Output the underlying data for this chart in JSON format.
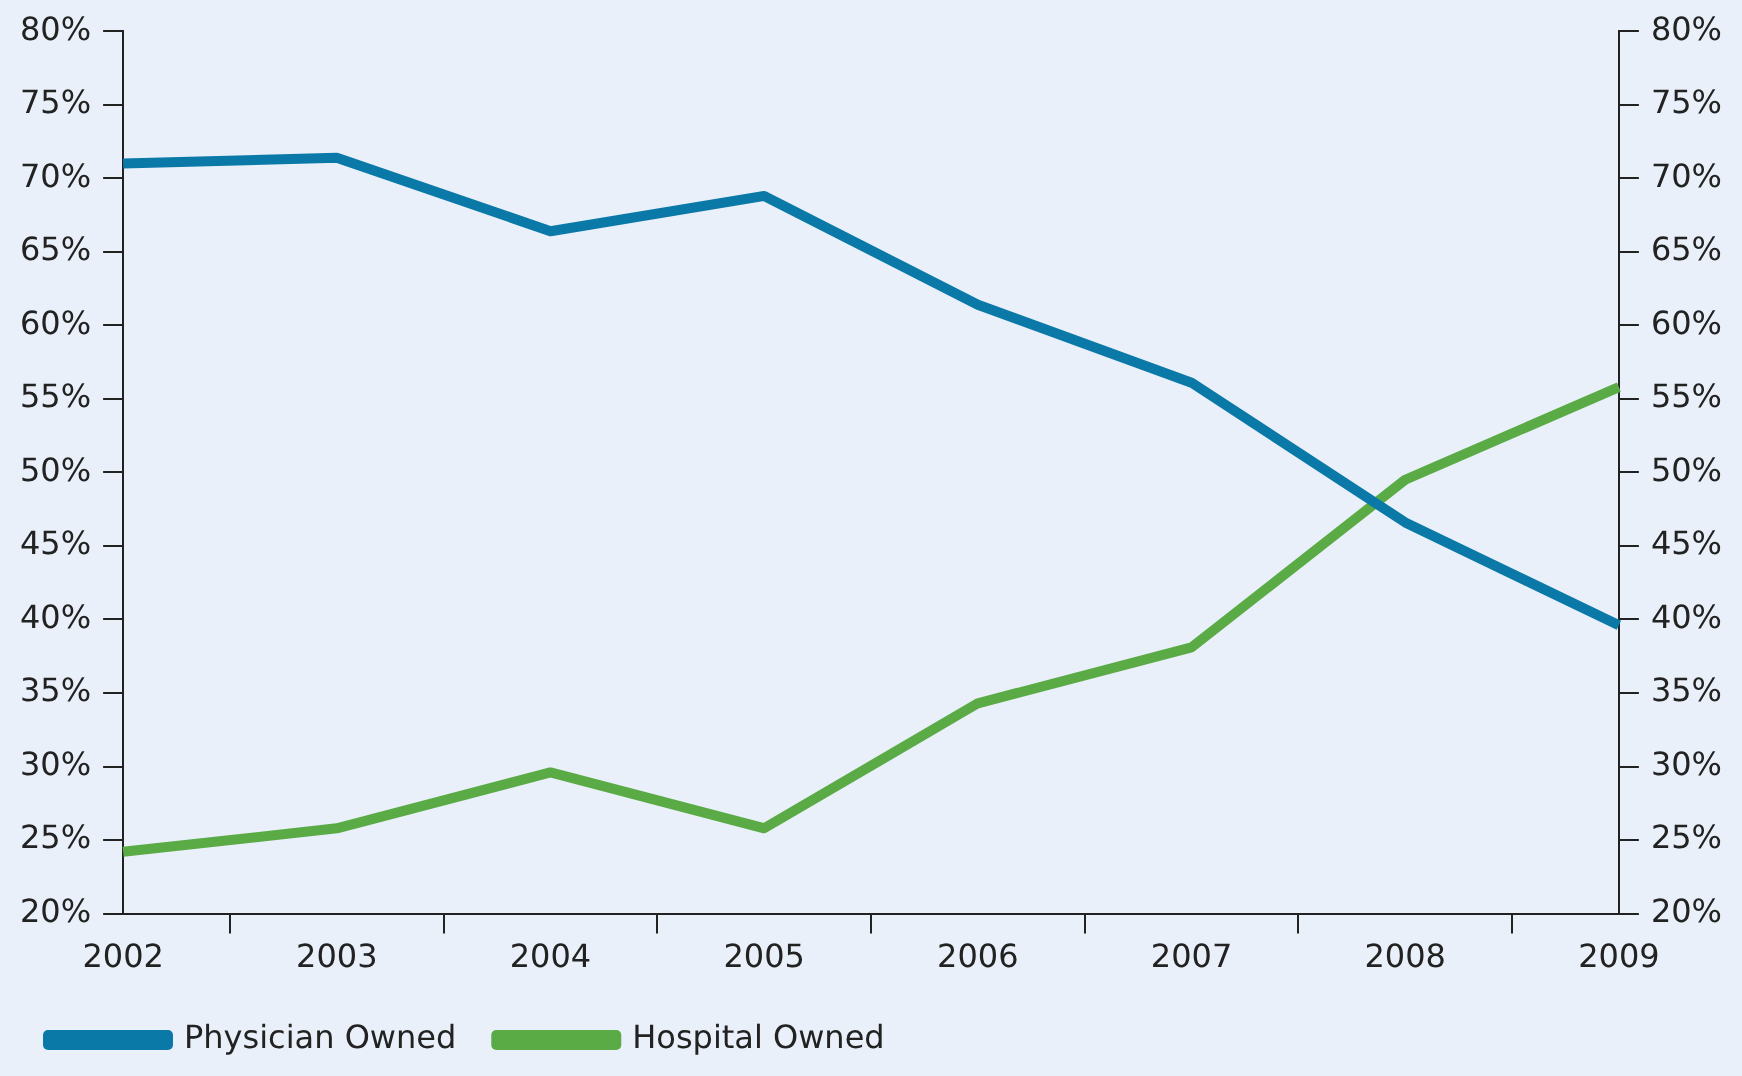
{
  "chart_data": {
    "type": "line",
    "categories": [
      "2002",
      "2003",
      "2004",
      "2005",
      "2006",
      "2007",
      "2008",
      "2009"
    ],
    "series": [
      {
        "name": "Physician Owned",
        "color": "#0a79a8",
        "values": [
          71,
          71.4,
          66.4,
          68.8,
          61.4,
          56.1,
          46.6,
          39.6
        ]
      },
      {
        "name": "Hospital Owned",
        "color": "#5aab46",
        "values": [
          24.2,
          25.8,
          29.6,
          25.8,
          34.3,
          38.1,
          49.5,
          55.8
        ]
      }
    ],
    "ylim": [
      20,
      80
    ],
    "yticks": [
      {
        "value": 20,
        "label": "20%"
      },
      {
        "value": 25,
        "label": "25%"
      },
      {
        "value": 30,
        "label": "30%"
      },
      {
        "value": 35,
        "label": "35%"
      },
      {
        "value": 40,
        "label": "40%"
      },
      {
        "value": 45,
        "label": "45%"
      },
      {
        "value": 50,
        "label": "50%"
      },
      {
        "value": 55,
        "label": "55%"
      },
      {
        "value": 60,
        "label": "60%"
      },
      {
        "value": 65,
        "label": "65%"
      },
      {
        "value": 70,
        "label": "70%"
      },
      {
        "value": 75,
        "label": "75%"
      },
      {
        "value": 80,
        "label": "80%"
      }
    ],
    "y2lim": [
      20,
      80
    ],
    "y2ticks": [
      {
        "value": 20,
        "label": "20%"
      },
      {
        "value": 25,
        "label": "25%"
      },
      {
        "value": 30,
        "label": "30%"
      },
      {
        "value": 35,
        "label": "35%"
      },
      {
        "value": 40,
        "label": "40%"
      },
      {
        "value": 45,
        "label": "45%"
      },
      {
        "value": 50,
        "label": "50%"
      },
      {
        "value": 55,
        "label": "55%"
      },
      {
        "value": 60,
        "label": "60%"
      },
      {
        "value": 65,
        "label": "65%"
      },
      {
        "value": 70,
        "label": "70%"
      },
      {
        "value": 75,
        "label": "75%"
      },
      {
        "value": 80,
        "label": "80%"
      }
    ],
    "grid": false,
    "legend": "bottom left",
    "marker": "none",
    "line_style": "solid"
  }
}
